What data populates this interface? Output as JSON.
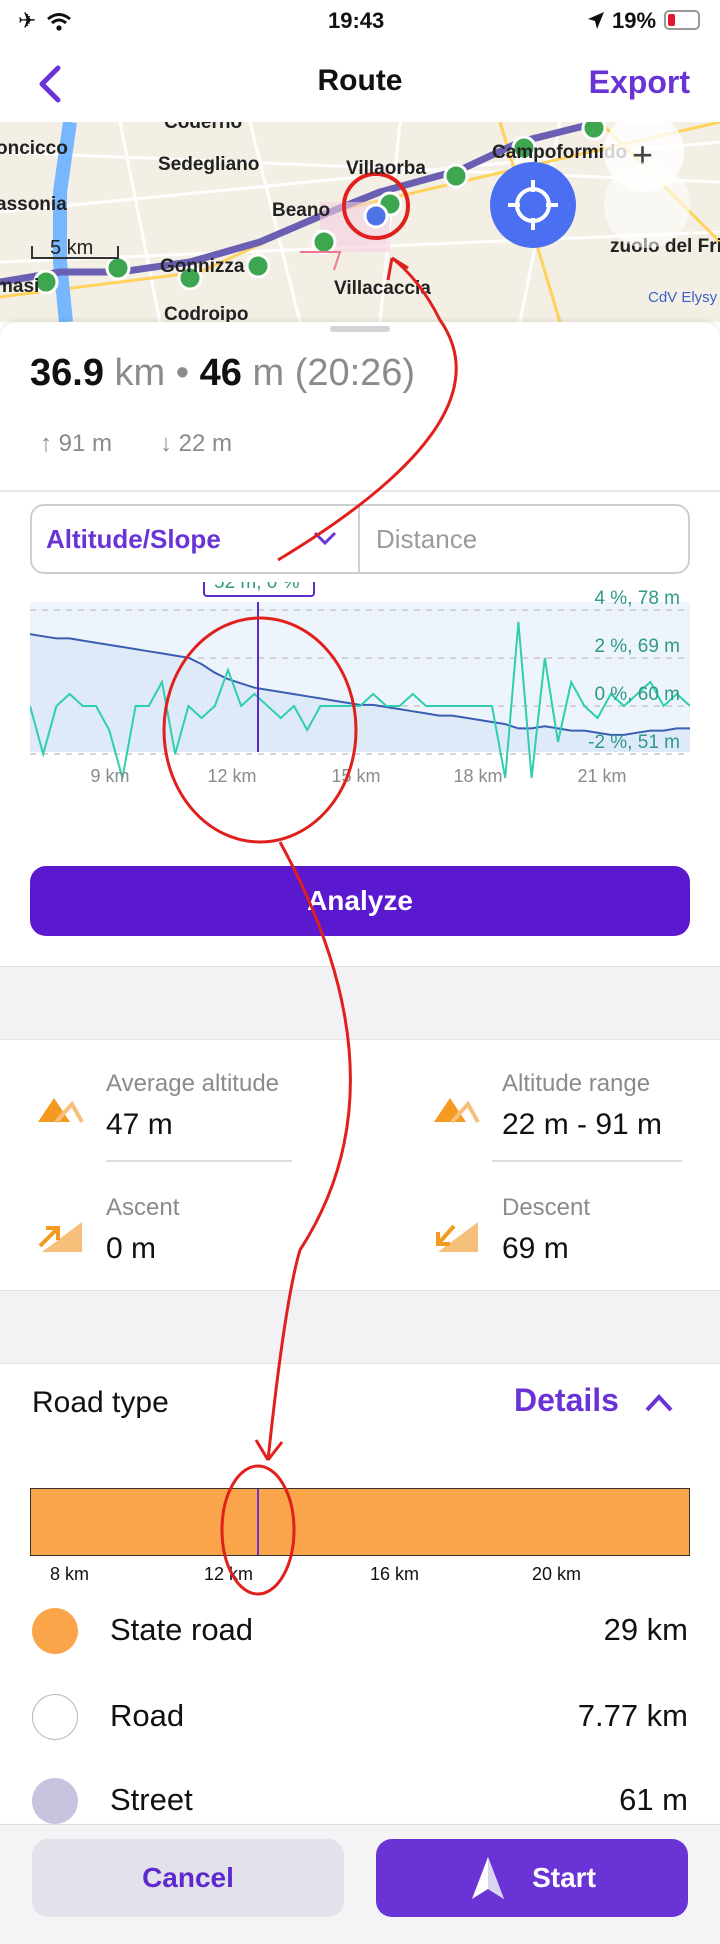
{
  "status": {
    "time": "19:43",
    "battery": "19%"
  },
  "nav": {
    "back_icon": "chevron-left-icon",
    "title": "Route",
    "export_label": "Export"
  },
  "map": {
    "places": [
      "Coderno",
      "oncicco",
      "Sedegliano",
      "Villaorba",
      "Campoformido",
      "assonia",
      "Beano",
      "Villacaccia",
      "Gonnizza",
      "Codroipo",
      "masi",
      "zuolo del Friuli"
    ],
    "scale_label": "5 km",
    "attribution": "CdV Elysy"
  },
  "summary": {
    "distance": "36.9",
    "distance_unit": "km",
    "sep": "•",
    "altitude": "46",
    "altitude_unit": "m",
    "duration": "(20:26)",
    "ascent": "91 m",
    "descent": "22 m"
  },
  "chart_tabs": {
    "left": "Altitude/Slope",
    "right": "Distance"
  },
  "chart_data": {
    "type": "line",
    "tooltip": "52 m, 0 %",
    "x_ticks": [
      "9 km",
      "12 km",
      "15 km",
      "18 km",
      "21 km"
    ],
    "right_labels": [
      "4 %, 78 m",
      "2 %, 69 m",
      "0 %, 60 m",
      "-2 %, 51 m"
    ],
    "series": [
      {
        "values": [
          80,
          79,
          78,
          78,
          77,
          76,
          75,
          74,
          73,
          72,
          71,
          70,
          69,
          66,
          62,
          59,
          57,
          55,
          54,
          53,
          52,
          51,
          50,
          49,
          48,
          47,
          47,
          46,
          45,
          44,
          43,
          42,
          42,
          41,
          40,
          39,
          38,
          36,
          36,
          37,
          36,
          35,
          35,
          34,
          33,
          33,
          34,
          35,
          35,
          36,
          36
        ]
      },
      {
        "values": [
          0,
          -2,
          0,
          0.5,
          0,
          0,
          -1,
          -3,
          0,
          0,
          1,
          -2,
          0,
          -0.5,
          0,
          1.5,
          0,
          0.5,
          0,
          -0.5,
          0,
          -1,
          0,
          0,
          0,
          0,
          0.5,
          0,
          0,
          0.5,
          0,
          0,
          0,
          0,
          0,
          0,
          -3,
          3.5,
          -3,
          2,
          -1.5,
          1,
          0,
          -0.5,
          0.5,
          0,
          0.5,
          1,
          0,
          0.5,
          0
        ]
      }
    ],
    "colors": {
      "altitude": "#3a5fb2",
      "slope": "#2ecfae",
      "fill": "#dde9f8",
      "cursor": "#5b2bc8"
    }
  },
  "analyze_label": "Analyze",
  "stats": {
    "avg_label": "Average altitude",
    "avg_value": "47 m",
    "range_label": "Altitude range",
    "range_value": "22 m - 91 m",
    "ascent_label": "Ascent",
    "ascent_value": "0 m",
    "descent_label": "Descent",
    "descent_value": "69 m"
  },
  "road": {
    "title": "Road type",
    "details_label": "Details",
    "bar_ticks": [
      "8 km",
      "12 km",
      "16 km",
      "20 km"
    ],
    "bar_color": "#fba54a",
    "legend": [
      {
        "name": "State road",
        "value": "29 km",
        "color": "#fba54a"
      },
      {
        "name": "Road",
        "value": "7.77 km",
        "color": "#ffffff"
      },
      {
        "name": "Street",
        "value": "61 m",
        "color": "#c9c2df"
      }
    ]
  },
  "bottom": {
    "cancel_label": "Cancel",
    "start_label": "Start"
  },
  "accent": "#6a33d6"
}
